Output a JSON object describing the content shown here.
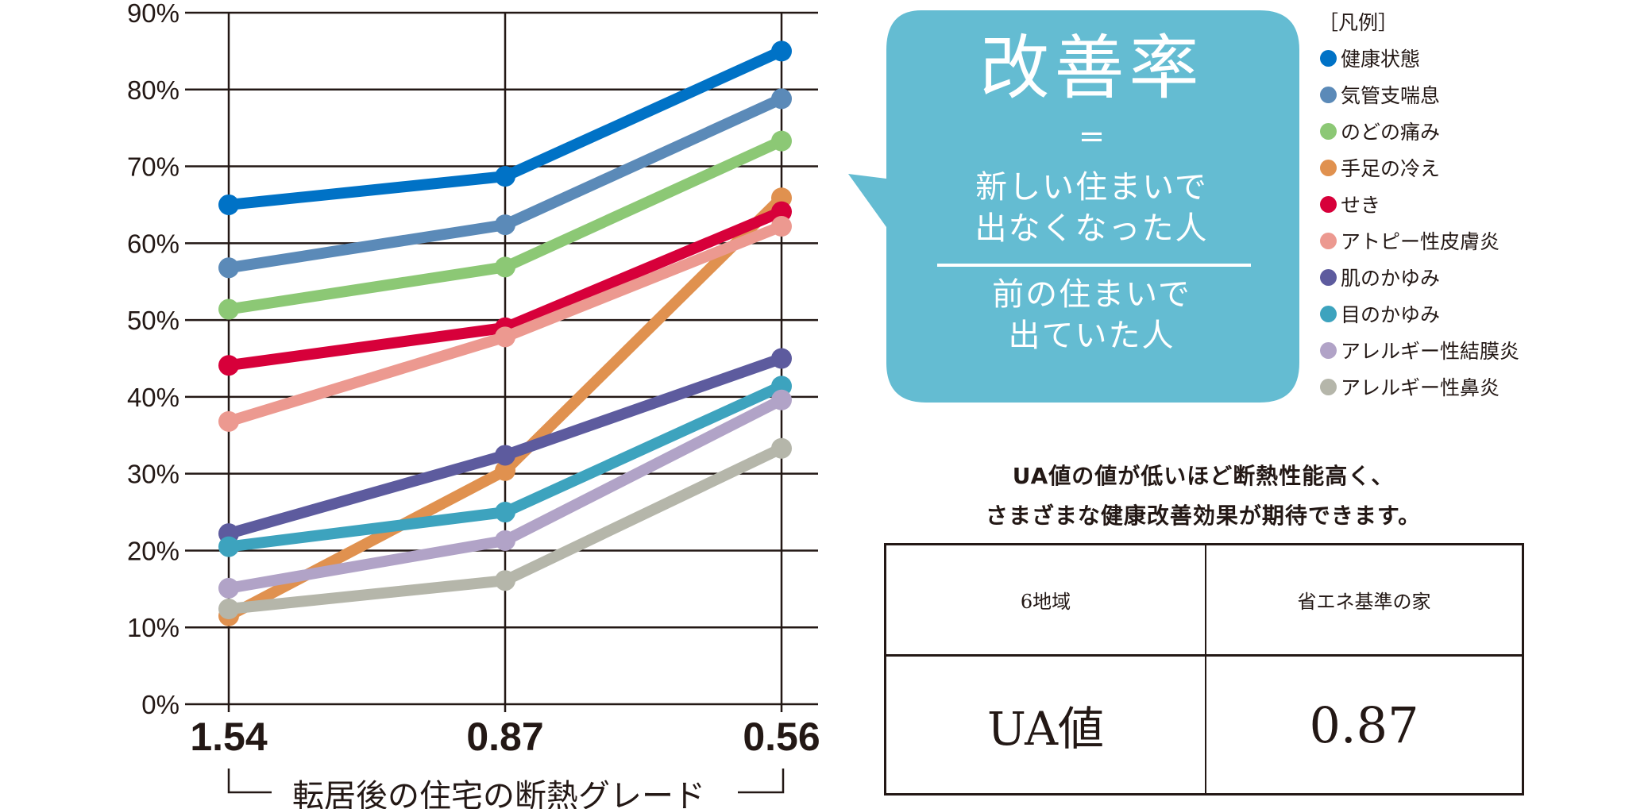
{
  "chart_data": {
    "type": "line",
    "categories": [
      "1.54",
      "0.87",
      "0.56"
    ],
    "xlabel": "転居後の住宅の断熱グレード",
    "ylabel": "",
    "ylim": [
      0,
      90
    ],
    "yticks": [
      "0%",
      "10%",
      "20%",
      "30%",
      "40%",
      "50%",
      "60%",
      "70%",
      "80%",
      "90%"
    ],
    "grid": true,
    "legend_position": "right",
    "series": [
      {
        "name": "健康状態",
        "color": "#0072c6",
        "values": [
          65,
          68.7,
          85
        ]
      },
      {
        "name": "気管支喘息",
        "color": "#5b8ab8",
        "values": [
          56.8,
          62.4,
          78.8
        ]
      },
      {
        "name": "のどの痛み",
        "color": "#8cc875",
        "values": [
          51.4,
          56.9,
          73.3
        ]
      },
      {
        "name": "手足の冷え",
        "color": "#e0914f",
        "values": [
          11.5,
          30.4,
          65.9
        ]
      },
      {
        "name": "せき",
        "color": "#d7003a",
        "values": [
          44.1,
          49,
          64.1
        ]
      },
      {
        "name": "アトピー性皮膚炎",
        "color": "#ec9990",
        "values": [
          36.8,
          47.8,
          62.2
        ]
      },
      {
        "name": "肌のかゆみ",
        "color": "#5d5b9e",
        "values": [
          22.2,
          32.4,
          45
        ]
      },
      {
        "name": "目のかゆみ",
        "color": "#3da3be",
        "values": [
          20.5,
          25,
          41.4
        ]
      },
      {
        "name": "アレルギー性結膜炎",
        "color": "#b1a3c7",
        "values": [
          15.1,
          21.3,
          39.6
        ]
      },
      {
        "name": "アレルギー性鼻炎",
        "color": "#b5b6aa",
        "values": [
          12.4,
          16.1,
          33.3
        ]
      }
    ]
  },
  "legend": {
    "title": "［凡例］"
  },
  "callout": {
    "title": "改善率",
    "equals": "=",
    "numerator_line1": "新しい住まいで",
    "numerator_line2": "出なくなった人",
    "denominator_line1": "前の住まいで",
    "denominator_line2": "出ていた人",
    "color": "#64bcd2"
  },
  "note": {
    "line1": "UA値の値が低いほど断熱性能高く、",
    "line2": "さまざまな健康改善効果が期待できます。"
  },
  "table": {
    "region": "6地域",
    "standard": "省エネ基準の家",
    "ua_label": "UA値",
    "ua_value": "0.87"
  }
}
